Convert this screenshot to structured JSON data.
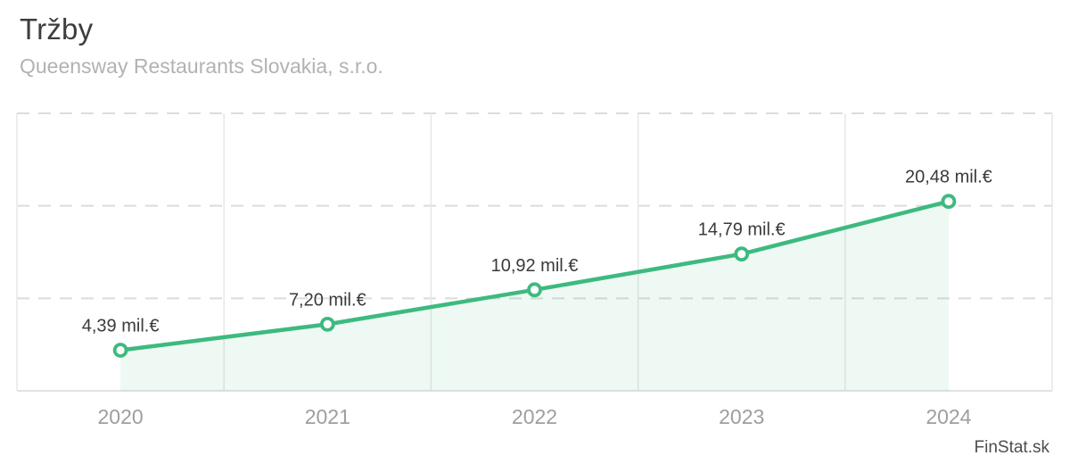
{
  "header": {
    "title": "Tržby",
    "subtitle": "Queensway Restaurants Slovakia, s.r.o."
  },
  "footer": {
    "brand": "FinStat.sk"
  },
  "chart_data": {
    "type": "line",
    "title": "Tržby",
    "xlabel": "",
    "ylabel": "",
    "categories": [
      "2020",
      "2021",
      "2022",
      "2023",
      "2024"
    ],
    "series": [
      {
        "name": "Tržby (mil. €)",
        "values": [
          4.39,
          7.2,
          10.92,
          14.79,
          20.48
        ]
      }
    ],
    "data_labels": [
      "4,39 mil.€",
      "7,20 mil.€",
      "10,92 mil.€",
      "14,79 mil.€",
      "20,48 mil.€"
    ],
    "unit": "mil.€",
    "ylim": [
      0,
      30
    ],
    "yticks": [
      0,
      10,
      20,
      30
    ],
    "grid": {
      "horizontal": "dashed",
      "vertical": "solid",
      "y_tick_labels_visible": false
    },
    "legend": "none",
    "area_fill_between_first_and_last_point": true,
    "colors": {
      "line": "#3dba7f",
      "marker_fill": "#ffffff",
      "area_fill": "rgba(61,186,127,0.09)",
      "grid_dashed": "#dcdcdc",
      "grid_vertical": "#e7e7e7",
      "axis_line": "#e2e2e2",
      "data_label_text": "#3a3a3a",
      "x_label_text": "#9e9e9e"
    }
  }
}
